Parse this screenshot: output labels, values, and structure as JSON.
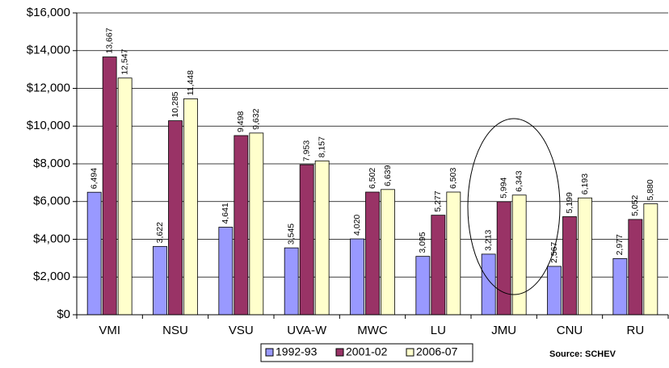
{
  "chart_data": {
    "type": "bar",
    "categories": [
      "VMI",
      "NSU",
      "VSU",
      "UVA-W",
      "MWC",
      "LU",
      "JMU",
      "CNU",
      "RU"
    ],
    "series": [
      {
        "name": "1992-93",
        "color": "#9999ff",
        "values": [
          6494,
          3622,
          4641,
          3545,
          4020,
          3095,
          3213,
          2567,
          2977
        ],
        "value_labels": [
          "6,494",
          "3,622",
          "4,641",
          "3,545",
          "4,020",
          "3,095",
          "3,213",
          "2,567",
          "2,977"
        ]
      },
      {
        "name": "2001-02",
        "color": "#993366",
        "values": [
          13667,
          10285,
          9498,
          7953,
          6502,
          5277,
          5994,
          5199,
          5052
        ],
        "value_labels": [
          "13,667",
          "10,285",
          "9,498",
          "7,953",
          "6,502",
          "5,277",
          "5,994",
          "5,199",
          "5,052"
        ]
      },
      {
        "name": "2006-07",
        "color": "#ffffcc",
        "values": [
          12547,
          11448,
          9632,
          8157,
          6639,
          6503,
          6343,
          6193,
          5880
        ],
        "value_labels": [
          "12,547",
          "11,448",
          "9,632",
          "8,157",
          "6,639",
          "6,503",
          "6,343",
          "6,193",
          "5,880"
        ]
      }
    ],
    "ylim": [
      0,
      16000
    ],
    "yticks": [
      {
        "value": 0,
        "label": "$0"
      },
      {
        "value": 2000,
        "label": "$2,000"
      },
      {
        "value": 4000,
        "label": "$4,000"
      },
      {
        "value": 6000,
        "label": "$6,000"
      },
      {
        "value": 8000,
        "label": "$8,000"
      },
      {
        "value": 10000,
        "label": "$10,000"
      },
      {
        "value": 12000,
        "label": "$12,000"
      },
      {
        "value": 14000,
        "label": "$14,000"
      },
      {
        "value": 16000,
        "label": "$16,000"
      }
    ],
    "grid": true,
    "annotation": "Source: SCHEV"
  }
}
